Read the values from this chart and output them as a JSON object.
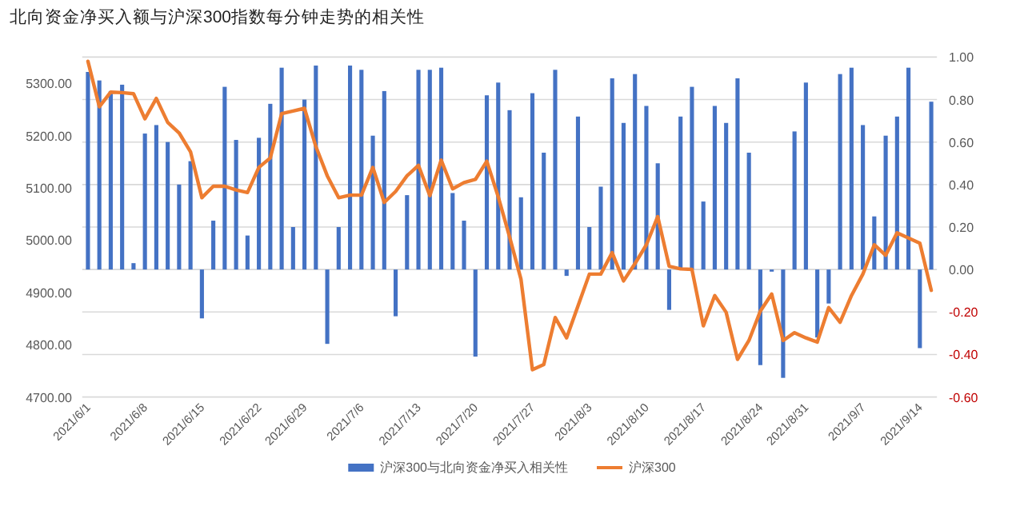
{
  "chart_data": {
    "type": "bar",
    "title": "北向资金净买入额与沪深300指数每分钟走势的相关性",
    "categories": [
      "2021/6/1",
      null,
      null,
      null,
      null,
      "2021/6/8",
      null,
      null,
      null,
      null,
      "2021/6/15",
      null,
      null,
      null,
      null,
      "2021/6/22",
      null,
      null,
      null,
      "2021/6/29",
      null,
      null,
      null,
      null,
      "2021/7/6",
      null,
      null,
      null,
      null,
      "2021/7/13",
      null,
      null,
      null,
      null,
      "2021/7/20",
      null,
      null,
      null,
      null,
      "2021/7/27",
      null,
      null,
      null,
      null,
      "2021/8/3",
      null,
      null,
      null,
      null,
      "2021/8/10",
      null,
      null,
      null,
      null,
      "2021/8/17",
      null,
      null,
      null,
      null,
      "2021/8/24",
      null,
      null,
      null,
      "2021/8/31",
      null,
      null,
      null,
      null,
      "2021/9/7",
      null,
      null,
      null,
      null,
      "2021/9/14",
      null
    ],
    "series": [
      {
        "name": "沪深300与北向资金净买入相关性",
        "axis": "y2",
        "color": "#4472c4",
        "values": [
          0.93,
          0.89,
          0.84,
          0.87,
          0.03,
          0.64,
          0.68,
          0.6,
          0.4,
          0.51,
          -0.23,
          0.23,
          0.86,
          0.61,
          0.16,
          0.62,
          0.78,
          0.95,
          0.2,
          0.8,
          0.96,
          -0.35,
          0.2,
          0.96,
          0.94,
          0.63,
          0.84,
          -0.22,
          0.35,
          0.94,
          0.94,
          0.95,
          0.36,
          0.23,
          -0.41,
          0.82,
          0.88,
          0.75,
          0.34,
          0.83,
          0.55,
          0.94,
          -0.03,
          0.72,
          0.2,
          0.39,
          0.9,
          0.69,
          0.92,
          0.77,
          0.5,
          -0.19,
          0.72,
          0.86,
          0.32,
          0.77,
          0.69,
          0.9,
          0.55,
          -0.45,
          -0.01,
          -0.51,
          0.65,
          0.88,
          -0.32,
          -0.16,
          0.92,
          0.95,
          0.68,
          0.25,
          0.63,
          0.72,
          0.95,
          -0.37,
          0.79
        ]
      },
      {
        "name": "沪深300",
        "type": "line",
        "color": "#ed7d31",
        "values": [
          5342,
          5255,
          5283,
          5282,
          5280,
          5232,
          5271,
          5225,
          5205,
          5169,
          5081,
          5103,
          5103,
          5096,
          5091,
          5139,
          5157,
          5242,
          5247,
          5252,
          5179,
          5123,
          5081,
          5086,
          5086,
          5139,
          5072,
          5093,
          5123,
          5143,
          5085,
          5153,
          5098,
          5110,
          5116,
          5151,
          5083,
          5006,
          4925,
          4752,
          4762,
          4852,
          4813,
          4874,
          4935,
          4935,
          4976,
          4922,
          4955,
          4991,
          5045,
          4950,
          4945,
          4944,
          4836,
          4894,
          4862,
          4772,
          4808,
          4864,
          4897,
          4808,
          4823,
          4813,
          4805,
          4871,
          4843,
          4894,
          4935,
          4991,
          4971,
          5014,
          5004,
          4994,
          4904
        ]
      }
    ],
    "ylim": [
      4700,
      5350
    ],
    "yticks": [
      {
        "value": 4700,
        "label": "4700.00"
      },
      {
        "value": 4800,
        "label": "4800.00"
      },
      {
        "value": 4900,
        "label": "4900.00"
      },
      {
        "value": 5000,
        "label": "5000.00"
      },
      {
        "value": 5100,
        "label": "5100.00"
      },
      {
        "value": 5200,
        "label": "5200.00"
      },
      {
        "value": 5300,
        "label": "5300.00"
      }
    ],
    "y2lim": [
      -0.6,
      1.0
    ],
    "y2ticks": [
      {
        "value": -0.6,
        "label": "-0.60"
      },
      {
        "value": -0.4,
        "label": "-0.40"
      },
      {
        "value": -0.2,
        "label": "-0.20"
      },
      {
        "value": 0,
        "label": "0.00"
      },
      {
        "value": 0.2,
        "label": "0.20"
      },
      {
        "value": 0.4,
        "label": "0.40"
      },
      {
        "value": 0.6,
        "label": "0.60"
      },
      {
        "value": 0.8,
        "label": "0.80"
      },
      {
        "value": 1.0,
        "label": "1.00"
      }
    ],
    "grid": "y",
    "legend": "bottom"
  }
}
